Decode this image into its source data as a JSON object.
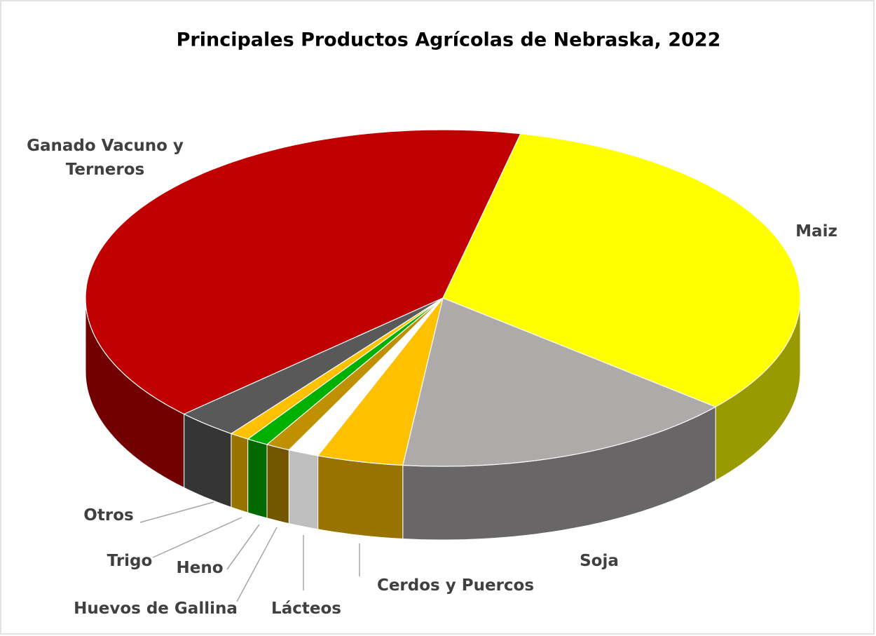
{
  "chart_data": {
    "type": "pie3d",
    "title": "Principales Productos Agrícolas de Nebraska, 2022",
    "categories": [
      "Ganado Vacuno y Terneros",
      "Maiz",
      "Soja",
      "Cerdos y Puercos",
      "Lácteos",
      "Huevos de Gallina",
      "Heno",
      "Trigo",
      "Otros"
    ],
    "values": [
      40.6,
      32.7,
      15.6,
      3.9,
      1.4,
      1.1,
      1.0,
      0.9,
      2.8
    ],
    "colors": [
      "#c00000",
      "#ffff00",
      "#aeaaaa",
      "#ffc000",
      "#ffffff",
      "#bf9000",
      "#00b000",
      "#ffc000",
      "#595959"
    ]
  }
}
